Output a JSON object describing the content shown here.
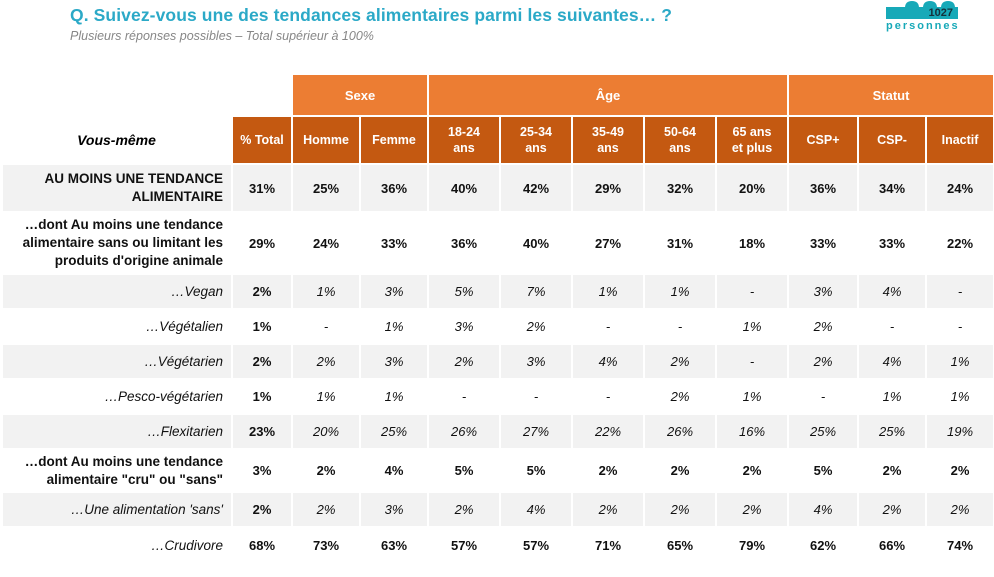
{
  "header": {
    "title": "Q. Suivez-vous une des tendances alimentaires parmi les suivantes… ?",
    "subtitle": "Plusieurs réponses possibles – Total supérieur à 100%",
    "sample_badge": {
      "count": "1027",
      "unit": "personnes"
    }
  },
  "colors": {
    "title_teal": "#2BA9C7",
    "badge_teal": "#17A9B8",
    "group_header_orange": "#EC7D33",
    "sub_header_orange": "#C45911",
    "shaded_row_gray": "#F2F2F2",
    "header_text": "#FFFFFF"
  },
  "chart_data": {
    "type": "table",
    "title": "Q. Suivez-vous une des tendances alimentaires parmi les suivantes… ?",
    "row_header_label": "Vous-même",
    "column_groups": [
      {
        "key": "sexe",
        "label": "Sexe",
        "span": 2
      },
      {
        "key": "age",
        "label": "Âge",
        "span": 5
      },
      {
        "key": "statut",
        "label": "Statut",
        "span": 3
      }
    ],
    "columns": [
      {
        "key": "total",
        "label": "% Total"
      },
      {
        "key": "homme",
        "label": "Homme"
      },
      {
        "key": "femme",
        "label": "Femme"
      },
      {
        "key": "18-24",
        "label": "18-24\nans"
      },
      {
        "key": "25-34",
        "label": "25-34\nans"
      },
      {
        "key": "35-49",
        "label": "35-49\nans"
      },
      {
        "key": "50-64",
        "label": "50-64\nans"
      },
      {
        "key": "65-plus",
        "label": "65 ans\net plus"
      },
      {
        "key": "csp-plus",
        "label": "CSP+"
      },
      {
        "key": "csp-minus",
        "label": "CSP-"
      },
      {
        "key": "inactif",
        "label": "Inactif"
      }
    ],
    "rows": [
      {
        "label": "AU MOINS UNE TENDANCE ALIMENTAIRE",
        "label_style": "bold",
        "value_style": "bold",
        "values": [
          "31%",
          "25%",
          "36%",
          "40%",
          "42%",
          "29%",
          "32%",
          "20%",
          "36%",
          "34%",
          "24%"
        ]
      },
      {
        "label": "…dont Au moins une tendance alimentaire sans ou limitant les produits d'origine animale",
        "label_style": "bold",
        "value_style": "bold",
        "values": [
          "29%",
          "24%",
          "33%",
          "36%",
          "40%",
          "27%",
          "31%",
          "18%",
          "33%",
          "33%",
          "22%"
        ]
      },
      {
        "label": "…Vegan",
        "label_style": "italic",
        "value_style": "italic",
        "values": [
          "2%",
          "1%",
          "3%",
          "5%",
          "7%",
          "1%",
          "1%",
          "-",
          "3%",
          "4%",
          "-"
        ]
      },
      {
        "label": "…Végétalien",
        "label_style": "italic",
        "value_style": "italic",
        "values": [
          "1%",
          "-",
          "1%",
          "3%",
          "2%",
          "-",
          "-",
          "1%",
          "2%",
          "-",
          "-"
        ]
      },
      {
        "label": "…Végétarien",
        "label_style": "italic",
        "value_style": "italic",
        "values": [
          "2%",
          "2%",
          "3%",
          "2%",
          "3%",
          "4%",
          "2%",
          "-",
          "2%",
          "4%",
          "1%"
        ]
      },
      {
        "label": "…Pesco-végétarien",
        "label_style": "italic",
        "value_style": "italic",
        "values": [
          "1%",
          "1%",
          "1%",
          "-",
          "-",
          "-",
          "2%",
          "1%",
          "-",
          "1%",
          "1%"
        ]
      },
      {
        "label": "…Flexitarien",
        "label_style": "italic",
        "value_style": "italic",
        "values": [
          "23%",
          "20%",
          "25%",
          "26%",
          "27%",
          "22%",
          "26%",
          "16%",
          "25%",
          "25%",
          "19%"
        ]
      },
      {
        "label": "…dont Au moins une tendance alimentaire \"cru\" ou \"sans\"",
        "label_style": "bold",
        "value_style": "bold",
        "values": [
          "3%",
          "2%",
          "4%",
          "5%",
          "5%",
          "2%",
          "2%",
          "2%",
          "5%",
          "2%",
          "2%"
        ]
      },
      {
        "label": "…Une alimentation 'sans'",
        "label_style": "italic",
        "value_style": "italic",
        "values": [
          "2%",
          "2%",
          "3%",
          "2%",
          "4%",
          "2%",
          "2%",
          "2%",
          "4%",
          "2%",
          "2%"
        ]
      },
      {
        "label": "…Crudivore",
        "label_style": "italic",
        "value_style": "bold",
        "values": [
          "68%",
          "73%",
          "63%",
          "57%",
          "57%",
          "71%",
          "65%",
          "79%",
          "62%",
          "66%",
          "74%"
        ]
      }
    ]
  }
}
